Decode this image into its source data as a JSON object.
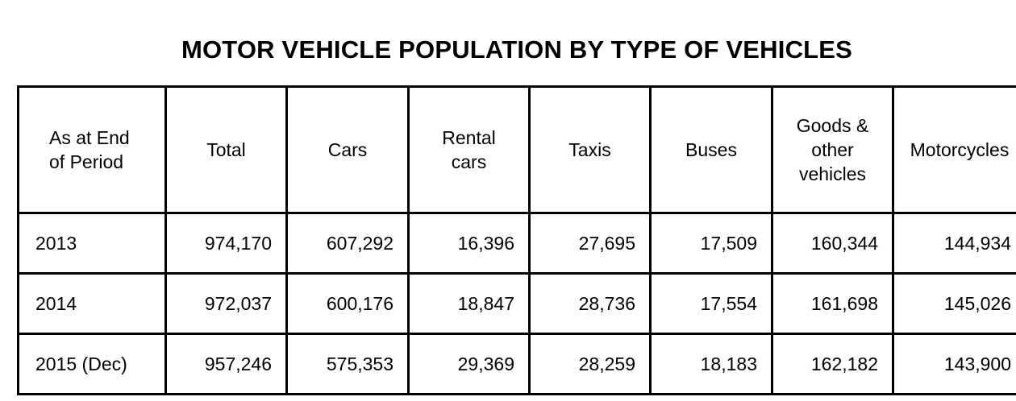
{
  "title": "MOTOR VEHICLE POPULATION BY TYPE OF VEHICLES",
  "columns": [
    [
      "As at End",
      "of Period"
    ],
    [
      "Total"
    ],
    [
      "Cars"
    ],
    [
      "Rental",
      "cars"
    ],
    [
      "Taxis"
    ],
    [
      "Buses"
    ],
    [
      "Goods &",
      "other",
      "vehicles"
    ],
    [
      "Motorcycles"
    ]
  ],
  "rows": [
    [
      "2013",
      "974,170",
      "607,292",
      "16,396",
      "27,695",
      "17,509",
      "160,344",
      "144,934"
    ],
    [
      "2014",
      "972,037",
      "600,176",
      "18,847",
      "28,736",
      "17,554",
      "161,698",
      "145,026"
    ],
    [
      "2015 (Dec)",
      "957,246",
      "575,353",
      "29,369",
      "28,259",
      "18,183",
      "162,182",
      "143,900"
    ]
  ]
}
